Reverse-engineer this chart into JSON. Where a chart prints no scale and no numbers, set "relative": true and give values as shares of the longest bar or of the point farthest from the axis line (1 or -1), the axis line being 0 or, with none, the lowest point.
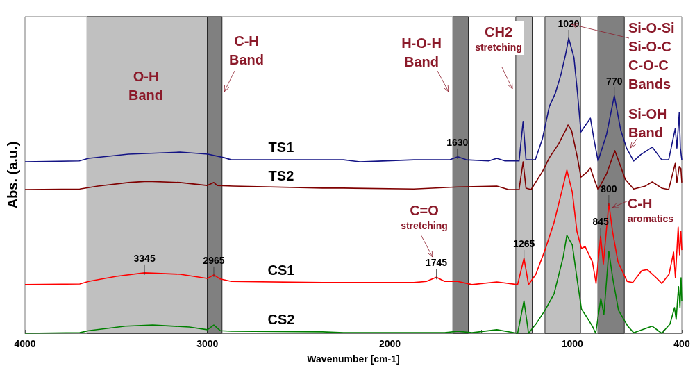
{
  "chart_data": {
    "type": "line",
    "relative": true,
    "xlabel": "Wavenumber [cm-1]",
    "ylabel": "Abs. (a.u.)",
    "marker": "none",
    "xlim": [
      4000,
      400
    ],
    "xticks": [
      4000,
      {
        "value": 3500,
        "label": null
      },
      3000,
      {
        "value": 2500,
        "label": null
      },
      2000,
      {
        "value": 1500,
        "label": null
      },
      1000,
      {
        "value": 500,
        "label": null
      },
      400
    ],
    "series": [
      {
        "name": "TS1",
        "color": "#141485",
        "x": [
          4000,
          3703,
          3651,
          3433,
          3151,
          2997,
          2908,
          2869,
          2369,
          2254,
          2164,
          1869,
          1671,
          1628,
          1581,
          1459,
          1414,
          1369,
          1292,
          1270,
          1254,
          1203,
          1164,
          1126,
          1094,
          1062,
          1036,
          1020,
          991,
          972,
          953,
          927,
          901,
          882,
          859,
          812,
          770,
          735,
          703,
          664,
          626,
          562,
          510,
          472,
          436,
          427,
          414,
          408,
          400
        ],
        "values": [
          0.581,
          0.584,
          0.593,
          0.607,
          0.614,
          0.607,
          0.595,
          0.588,
          0.588,
          0.588,
          0.581,
          0.588,
          0.588,
          0.598,
          0.588,
          0.584,
          0.593,
          0.584,
          0.584,
          0.718,
          0.588,
          0.588,
          0.659,
          0.769,
          0.812,
          0.878,
          0.948,
          1.0,
          0.934,
          0.816,
          0.682,
          0.706,
          0.729,
          0.659,
          0.584,
          0.675,
          0.805,
          0.689,
          0.628,
          0.584,
          0.605,
          0.631,
          0.588,
          0.588,
          0.694,
          0.628,
          0.748,
          0.628,
          0.588
        ]
      },
      {
        "name": "TS2",
        "color": "#7f0000",
        "x": [
          4000,
          3700,
          3600,
          3433,
          3331,
          3150,
          3000,
          2965,
          2946,
          2860,
          2369,
          2254,
          1869,
          1628,
          1414,
          1350,
          1292,
          1270,
          1254,
          1226,
          1164,
          1126,
          1075,
          1036,
          1024,
          1004,
          972,
          953,
          920,
          901,
          882,
          859,
          812,
          767,
          735,
          710,
          664,
          600,
          562,
          510,
          472,
          436,
          427,
          414,
          405,
          400
        ],
        "values": [
          0.487,
          0.489,
          0.499,
          0.511,
          0.515,
          0.511,
          0.501,
          0.511,
          0.501,
          0.499,
          0.492,
          0.492,
          0.489,
          0.496,
          0.499,
          0.487,
          0.487,
          0.581,
          0.492,
          0.487,
          0.548,
          0.595,
          0.642,
          0.689,
          0.706,
          0.687,
          0.595,
          0.529,
          0.546,
          0.56,
          0.525,
          0.487,
          0.541,
          0.619,
          0.565,
          0.522,
          0.489,
          0.499,
          0.513,
          0.492,
          0.487,
          0.576,
          0.511,
          0.565,
          0.558,
          0.511
        ]
      },
      {
        "name": "CS1",
        "color": "#ff0000",
        "x": [
          4000,
          3700,
          3651,
          3500,
          3345,
          3150,
          3000,
          2965,
          2930,
          2869,
          2369,
          2254,
          1869,
          1800,
          1745,
          1700,
          1628,
          1550,
          1414,
          1300,
          1265,
          1240,
          1200,
          1150,
          1100,
          1050,
          1030,
          1000,
          975,
          950,
          930,
          890,
          870,
          845,
          830,
          800,
          780,
          750,
          700,
          670,
          620,
          590,
          540,
          510,
          470,
          445,
          435,
          420,
          412,
          405,
          400
        ],
        "values": [
          0.165,
          0.167,
          0.176,
          0.193,
          0.205,
          0.2,
          0.186,
          0.198,
          0.184,
          0.176,
          0.172,
          0.172,
          0.172,
          0.176,
          0.19,
          0.176,
          0.176,
          0.165,
          0.174,
          0.165,
          0.254,
          0.165,
          0.2,
          0.282,
          0.376,
          0.501,
          0.553,
          0.478,
          0.346,
          0.287,
          0.294,
          0.242,
          0.169,
          0.329,
          0.235,
          0.44,
          0.346,
          0.242,
          0.176,
          0.172,
          0.212,
          0.216,
          0.188,
          0.169,
          0.2,
          0.275,
          0.188,
          0.36,
          0.266,
          0.346,
          0.282
        ]
      },
      {
        "name": "CS2",
        "color": "#008000",
        "x": [
          4000,
          3700,
          3651,
          3450,
          3300,
          3100,
          3000,
          2965,
          2930,
          2869,
          2369,
          2254,
          1700,
          1628,
          1550,
          1414,
          1300,
          1265,
          1240,
          1200,
          1150,
          1100,
          1050,
          1030,
          1000,
          975,
          950,
          920,
          890,
          872,
          844,
          827,
          800,
          779,
          747,
          696,
          664,
          600,
          562,
          510,
          465,
          440,
          431,
          418,
          410,
          404,
          400
        ],
        "values": [
          0.0,
          0.002,
          0.009,
          0.024,
          0.028,
          0.021,
          0.012,
          0.028,
          0.009,
          0.007,
          0.005,
          0.002,
          0.002,
          0.007,
          0.002,
          0.012,
          0.0,
          0.11,
          0.0,
          0.031,
          0.078,
          0.134,
          0.259,
          0.332,
          0.299,
          0.188,
          0.082,
          0.054,
          0.024,
          0.0,
          0.118,
          0.064,
          0.278,
          0.188,
          0.078,
          0.024,
          0.002,
          0.016,
          0.024,
          0.0,
          0.031,
          0.087,
          0.047,
          0.158,
          0.087,
          0.188,
          0.11
        ]
      }
    ],
    "bands": [
      {
        "axis": "x",
        "from": 3660,
        "to": 3000,
        "label": "O-H\nBand",
        "color": "#c0c0c0"
      },
      {
        "axis": "x",
        "from": 3000,
        "to": 2920,
        "label": "C-H\nBand",
        "color": "#808080"
      },
      {
        "axis": "x",
        "from": 1655,
        "to": 1570,
        "label": "H-O-H\nBand",
        "color": "#808080"
      },
      {
        "axis": "x",
        "from": 1310,
        "to": 1220,
        "label": "CH2\nstretching",
        "color": "#c0c0c0"
      },
      {
        "axis": "x",
        "from": 1150,
        "to": 955,
        "label": "Si-O-Si\nSi-O-C\nC-O-C\nBands",
        "color": "#c0c0c0"
      },
      {
        "axis": "x",
        "from": 860,
        "to": 715,
        "label": "Si-OH\nBand",
        "color": "#808080"
      }
    ],
    "annotations": [
      "C=O\nstretching",
      {
        "text": "C-H\naromatics",
        "x": 800,
        "y": 0.44
      },
      {
        "text": "3345",
        "x": 3345,
        "y": 0.205
      },
      {
        "text": "2965",
        "x": 2965,
        "y": 0.198
      },
      {
        "text": "1745",
        "x": 1745,
        "y": 0.19
      },
      {
        "text": "1630",
        "x": 1630,
        "y": 0.598
      },
      {
        "text": "1265",
        "x": 1265,
        "y": 0.254
      },
      {
        "text": "1020",
        "x": 1020,
        "y": 1.0
      },
      {
        "text": "845",
        "x": 845,
        "y": 0.329
      },
      {
        "text": "800",
        "x": 800,
        "y": 0.44
      },
      {
        "text": "770",
        "x": 770,
        "y": 0.805
      }
    ]
  }
}
